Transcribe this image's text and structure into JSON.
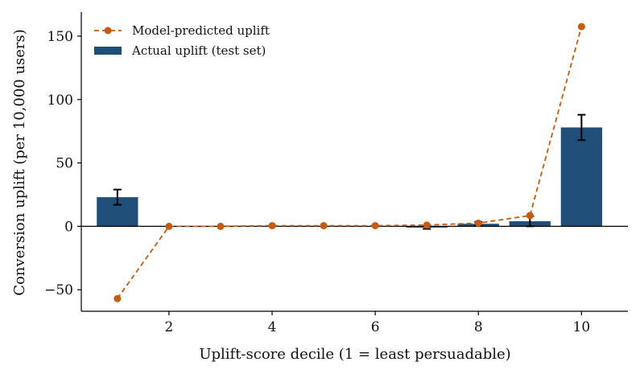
{
  "chart_data": {
    "type": "bar",
    "x": [
      1,
      2,
      3,
      4,
      5,
      6,
      7,
      8,
      9,
      10
    ],
    "series": [
      {
        "name": "Actual uplift (test set)",
        "kind": "bar",
        "values": [
          23,
          0,
          0,
          0,
          0,
          0,
          -1,
          2,
          4,
          78
        ],
        "error": [
          6,
          0,
          0,
          0,
          0,
          0,
          1,
          1.5,
          4,
          10
        ],
        "color": "#1f4e79"
      },
      {
        "name": "Model-predicted uplift",
        "kind": "line",
        "values": [
          -57,
          0,
          0,
          0.5,
          0.5,
          0.5,
          1,
          2.5,
          8.5,
          157.5
        ],
        "color": "#c55a11",
        "line_style": "dashed",
        "marker": "circle"
      }
    ],
    "xlabel": "Uplift-score decile (1 = least persuadable)",
    "ylabel": "Conversion uplift (per 10,000 users)",
    "xlim": [
      0.3,
      10.9
    ],
    "ylim": [
      -67,
      169
    ],
    "xticks": [
      2,
      4,
      6,
      8,
      10
    ],
    "yticks": [
      -50,
      0,
      50,
      100,
      150
    ],
    "legend_position": "top-left",
    "zero_line": true,
    "grid": false
  }
}
